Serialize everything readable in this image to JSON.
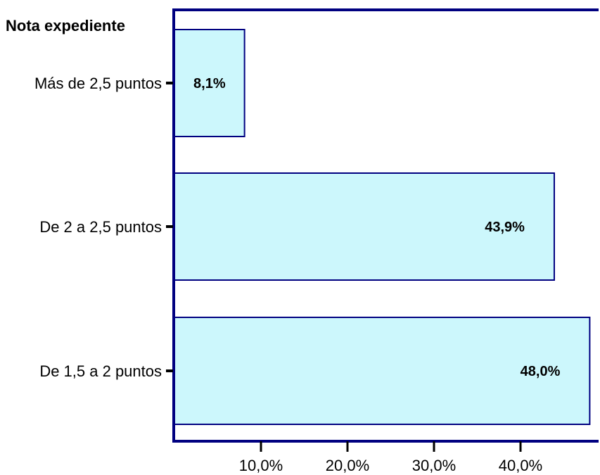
{
  "chart_data": {
    "type": "bar",
    "orientation": "horizontal",
    "ylabel": "Nota expediente",
    "xlabel": "",
    "categories": [
      "Más de 2,5 puntos",
      "De 2 a 2,5 puntos",
      "De 1,5 a 2 puntos"
    ],
    "values": [
      8.1,
      43.9,
      48.0
    ],
    "data_labels": [
      "8,1%",
      "43,9%",
      "48,0%"
    ],
    "x_ticks": [
      10,
      20,
      30,
      40
    ],
    "x_tick_labels": [
      "10,0%",
      "20,0%",
      "30,0%",
      "40,0%"
    ],
    "xlim": [
      0,
      49
    ],
    "grid": false,
    "legend": "none",
    "colors": {
      "bar_fill": "#ccf7fc",
      "bar_stroke": "#000080",
      "axis": "#000080",
      "tick": "#000000"
    }
  }
}
